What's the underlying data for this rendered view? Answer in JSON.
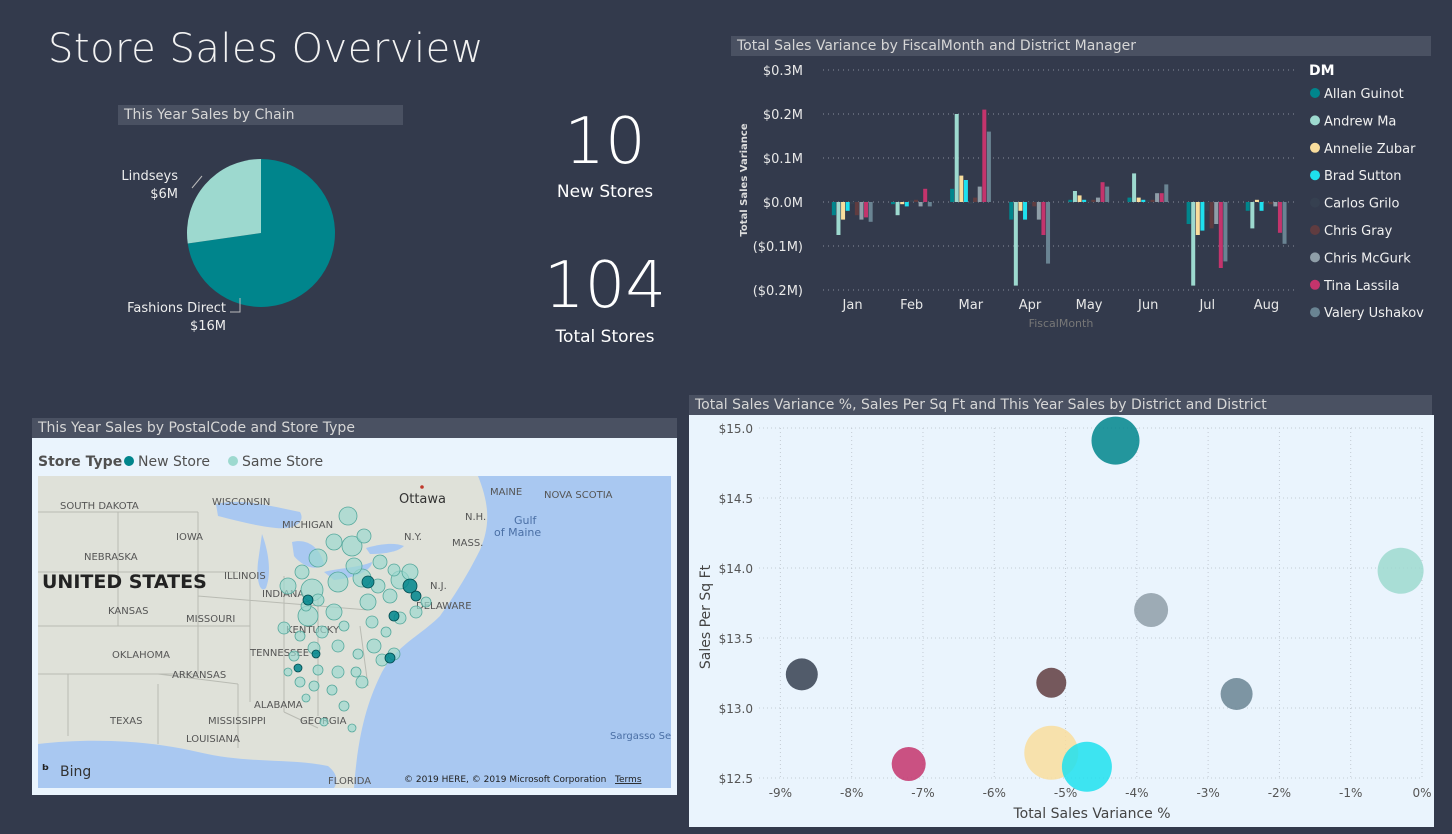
{
  "page": {
    "title": "Store Sales Overview"
  },
  "cards": {
    "new_stores": {
      "value": "10",
      "label": "New Stores"
    },
    "total_stores": {
      "value": "104",
      "label": "Total Stores"
    }
  },
  "pie": {
    "title": "This Year Sales by Chain",
    "chart_data": {
      "type": "pie",
      "slices": [
        {
          "name": "Fashions Direct",
          "value": 16,
          "label": "$16M",
          "color": "#00858c"
        },
        {
          "name": "Lindseys",
          "value": 6,
          "label": "$6M",
          "color": "#9dd9cf"
        }
      ]
    }
  },
  "bar": {
    "title": "Total Sales Variance by FiscalMonth and District Manager",
    "chart_data": {
      "type": "bar",
      "xlabel": "FiscalMonth",
      "ylabel": "Total Sales Variance",
      "ylim": [
        -0.2,
        0.3
      ],
      "yticks": [
        {
          "v": 0.3,
          "label": "$0.3M"
        },
        {
          "v": 0.2,
          "label": "$0.2M"
        },
        {
          "v": 0.1,
          "label": "$0.1M"
        },
        {
          "v": 0.0,
          "label": "$0.0M"
        },
        {
          "v": -0.1,
          "label": "($0.1M)"
        },
        {
          "v": -0.2,
          "label": "($0.2M)"
        }
      ],
      "categories": [
        "Jan",
        "Feb",
        "Mar",
        "Apr",
        "May",
        "Jun",
        "Jul",
        "Aug"
      ],
      "legend_title": "DM",
      "series": [
        {
          "name": "Allan Guinot",
          "color": "#00858c",
          "values": [
            -0.03,
            -0.005,
            0.03,
            -0.04,
            0.005,
            0.01,
            -0.05,
            -0.02
          ]
        },
        {
          "name": "Andrew Ma",
          "color": "#9dd9cf",
          "values": [
            -0.075,
            -0.03,
            0.2,
            -0.19,
            0.025,
            0.065,
            -0.19,
            -0.06
          ]
        },
        {
          "name": "Annelie Zubar",
          "color": "#f9dd9d",
          "values": [
            -0.04,
            -0.005,
            0.06,
            -0.02,
            0.015,
            0.01,
            -0.075,
            0.005
          ]
        },
        {
          "name": "Brad Sutton",
          "color": "#1ee0ee",
          "values": [
            -0.02,
            -0.01,
            0.05,
            -0.04,
            0.005,
            0.005,
            -0.065,
            -0.02
          ]
        },
        {
          "name": "Carlos Grilo",
          "color": "#364050",
          "values": [
            -0.005,
            0.005,
            -0.005,
            -0.005,
            0.005,
            0.005,
            -0.02,
            -0.005
          ]
        },
        {
          "name": "Chris Gray",
          "color": "#603c40",
          "values": [
            -0.03,
            0.005,
            0.01,
            -0.01,
            0.005,
            0.005,
            -0.06,
            -0.005
          ]
        },
        {
          "name": "Chris McGurk",
          "color": "#8f9ea8",
          "values": [
            -0.04,
            -0.01,
            0.035,
            -0.04,
            0.01,
            0.02,
            -0.05,
            -0.01
          ]
        },
        {
          "name": "Tina Lassila",
          "color": "#c4346c",
          "values": [
            -0.035,
            0.03,
            0.21,
            -0.075,
            0.045,
            0.02,
            -0.15,
            -0.07
          ]
        },
        {
          "name": "Valery Ushakov",
          "color": "#6a8493",
          "values": [
            -0.045,
            -0.01,
            0.16,
            -0.14,
            0.035,
            0.04,
            -0.135,
            -0.095
          ]
        }
      ]
    }
  },
  "map": {
    "title": "This Year Sales by PostalCode and Store Type",
    "legend_title": "Store Type",
    "legend": [
      {
        "name": "New Store",
        "color": "#00858c"
      },
      {
        "name": "Same Store",
        "color": "#9dd9cf"
      }
    ],
    "labels": {
      "country": "UNITED STATES",
      "south_dakota": "SOUTH DAKOTA",
      "wisconsin": "WISCONSIN",
      "michigan": "MICHIGAN",
      "ottawa": "Ottawa",
      "maine": "MAINE",
      "nova_scotia": "NOVA SCOTIA",
      "nh": "N.H.",
      "gulf": "Gulf",
      "of_maine": "of Maine",
      "iowa": "IOWA",
      "ny": "N.Y.",
      "mass": "MASS.",
      "nebraska": "NEBRASKA",
      "illinois": "ILLINOIS",
      "indiana": "INDIANA",
      "nj": "N.J.",
      "kansas": "KANSAS",
      "missouri": "MISSOURI",
      "delaware": "DELAWARE",
      "kentucky": "KENTUCKY",
      "oklahoma": "OKLAHOMA",
      "tennessee": "TENNESSEE",
      "arkansas": "ARKANSAS",
      "alabama": "ALABAMA",
      "texas": "TEXAS",
      "mississippi": "MISSISSIPPI",
      "georgia": "GEORGIA",
      "louisiana": "LOUISIANA",
      "florida": "FLORIDA",
      "sargasso": "Sargasso Se",
      "bing": "Bing",
      "copyright": "© 2019 HERE, © 2019 Microsoft Corporation",
      "terms": "Terms"
    }
  },
  "scatter": {
    "title": "Total Sales Variance %, Sales Per Sq Ft and This Year Sales by District and District",
    "chart_data": {
      "type": "scatter",
      "xlabel": "Total Sales Variance %",
      "ylabel": "Sales Per Sq Ft",
      "xlim": [
        -9.3,
        0
      ],
      "ylim": [
        12.5,
        15.0
      ],
      "xticks": [
        {
          "v": -9,
          "label": "-9%"
        },
        {
          "v": -8,
          "label": "-8%"
        },
        {
          "v": -7,
          "label": "-7%"
        },
        {
          "v": -6,
          "label": "-6%"
        },
        {
          "v": -5,
          "label": "-5%"
        },
        {
          "v": -4,
          "label": "-4%"
        },
        {
          "v": -3,
          "label": "-3%"
        },
        {
          "v": -2,
          "label": "-2%"
        },
        {
          "v": -1,
          "label": "-1%"
        },
        {
          "v": 0,
          "label": "0%"
        }
      ],
      "yticks": [
        {
          "v": 15.0,
          "label": "$15.0"
        },
        {
          "v": 14.5,
          "label": "$14.5"
        },
        {
          "v": 14.0,
          "label": "$14.0"
        },
        {
          "v": 13.5,
          "label": "$13.5"
        },
        {
          "v": 13.0,
          "label": "$13.0"
        },
        {
          "v": 12.5,
          "label": "$12.5"
        }
      ],
      "points": [
        {
          "x": -4.3,
          "y": 14.91,
          "size": 24,
          "color": "#00858c"
        },
        {
          "x": -0.3,
          "y": 13.98,
          "size": 23,
          "color": "#9dd9cf"
        },
        {
          "x": -3.8,
          "y": 13.7,
          "size": 17,
          "color": "#8f9ea8"
        },
        {
          "x": -8.7,
          "y": 13.24,
          "size": 16,
          "color": "#364050"
        },
        {
          "x": -5.2,
          "y": 13.18,
          "size": 15,
          "color": "#603c40"
        },
        {
          "x": -2.6,
          "y": 13.1,
          "size": 16,
          "color": "#6a8493"
        },
        {
          "x": -5.2,
          "y": 12.68,
          "size": 27,
          "color": "#f9dd9d"
        },
        {
          "x": -4.7,
          "y": 12.58,
          "size": 25,
          "color": "#1ee0ee"
        },
        {
          "x": -7.2,
          "y": 12.6,
          "size": 17,
          "color": "#c4346c"
        }
      ]
    }
  }
}
